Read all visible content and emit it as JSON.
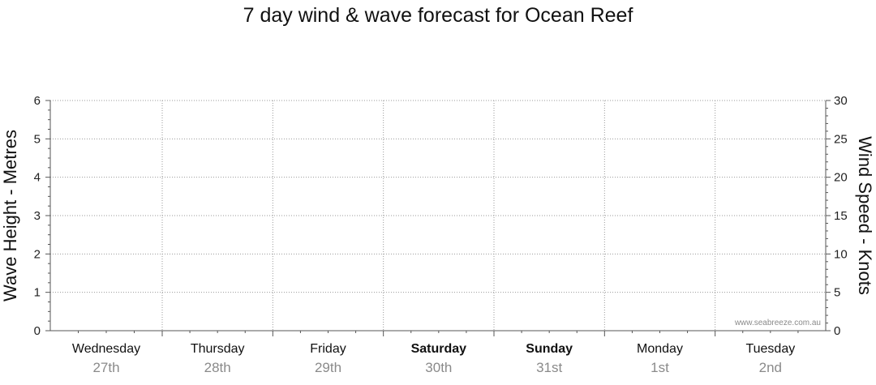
{
  "page": {
    "title": "7 day wind & wave forecast for Ocean Reef",
    "watermark": "www.seabreeze.com.au"
  },
  "chart_data": {
    "type": "line",
    "title": "7 day wind & wave forecast for Ocean Reef",
    "x_days": [
      {
        "name": "Wednesday",
        "date": "27th",
        "weekend": false
      },
      {
        "name": "Thursday",
        "date": "28th",
        "weekend": false
      },
      {
        "name": "Friday",
        "date": "29th",
        "weekend": false
      },
      {
        "name": "Saturday",
        "date": "30th",
        "weekend": true
      },
      {
        "name": "Sunday",
        "date": "31st",
        "weekend": true
      },
      {
        "name": "Monday",
        "date": "1st",
        "weekend": false
      },
      {
        "name": "Tuesday",
        "date": "2nd",
        "weekend": false
      }
    ],
    "y_left": {
      "label": "Wave Height - Metres",
      "ylim": [
        0,
        6
      ],
      "ticks": [
        "0",
        "1",
        "2",
        "3",
        "4",
        "5",
        "6"
      ]
    },
    "y_right": {
      "label": "Wind Speed - Knots",
      "ylim": [
        0,
        30
      ],
      "ticks": [
        "0",
        "5",
        "10",
        "15",
        "20",
        "25",
        "30"
      ]
    },
    "grid": true,
    "series": []
  }
}
